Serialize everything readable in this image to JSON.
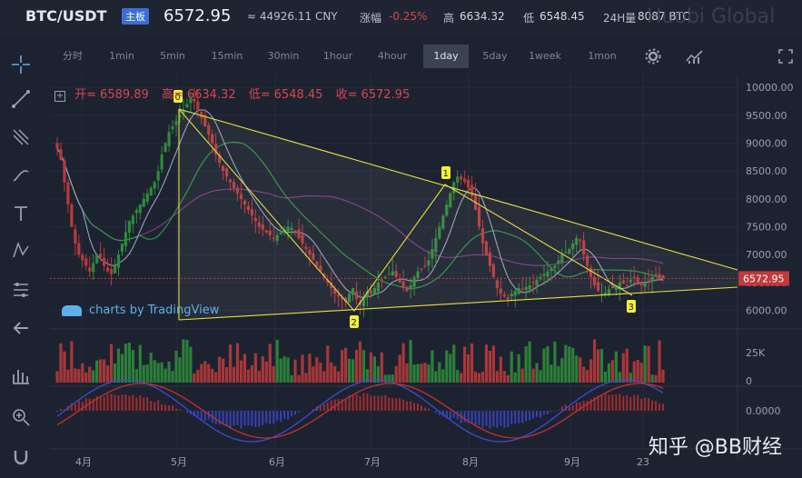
{
  "header": {
    "pair": "BTC/USDT",
    "board_badge": "主板",
    "price": "6572.95",
    "cny_price": "≈ 44926.11 CNY",
    "change_label": "涨幅",
    "change_value": "-0.25%",
    "high_label": "高",
    "high_value": "6634.32",
    "low_label": "低",
    "low_value": "6548.45",
    "volume_label": "24H量",
    "volume_value": "8087 BTC",
    "brand_watermark": "Huobi Global"
  },
  "timeframes": [
    "分时",
    "1min",
    "5min",
    "15min",
    "30min",
    "1hour",
    "4hour",
    "1day",
    "5day",
    "1week",
    "1mon"
  ],
  "active_timeframe": "1day",
  "toolbar_icons": [
    "crosshair-icon",
    "trend-line-icon",
    "fork-icon",
    "brush-icon",
    "text-icon",
    "pattern-icon",
    "fib-icon",
    "back-arrow-icon",
    "ruler-icon",
    "zoom-icon",
    "magnet-icon"
  ],
  "ohlc": {
    "open_label": "开=",
    "open": "6589.89",
    "high_label": "高=",
    "high": "6634.32",
    "low_label": "低=",
    "low": "6548.45",
    "close_label": "收=",
    "close": "6572.95"
  },
  "tradingview_label": "charts by TradingView",
  "watermark": "知乎 @BB财经",
  "colors": {
    "up": "#2e8b3a",
    "down": "#b83a3a",
    "pattern_line": "#e6e03a",
    "price_tag": "#c0393b",
    "ma_purple": "#8a3c8e",
    "ma_green": "#2f9e47",
    "ma_white": "#9aa4c0",
    "macd_blue": "#3a4bd8",
    "macd_red": "#c43030",
    "background": "#1d2230"
  },
  "chart_data": {
    "type": "candlestick",
    "x_tick_labels": [
      "4月",
      "5月",
      "6月",
      "7月",
      "8月",
      "9月",
      "23"
    ],
    "price_axis_labels": [
      "10000.00",
      "9500.00",
      "9000.00",
      "8500.00",
      "8000.00",
      "7500.00",
      "7000.00",
      "6500.00",
      "6000.00"
    ],
    "price_ylim": [
      5700,
      10100
    ],
    "last_price_tag": "6572.95",
    "volume_axis_labels": [
      "25K",
      "0"
    ],
    "macd_axis_labels": [
      "0.0000"
    ],
    "pattern_labels": [
      "0",
      "1",
      "2",
      "3"
    ],
    "close_series": [
      8900,
      8700,
      8300,
      7900,
      7500,
      7200,
      7000,
      6900,
      6800,
      6700,
      6850,
      7000,
      6950,
      6800,
      6700,
      6650,
      6800,
      7000,
      7200,
      7400,
      7600,
      7700,
      7800,
      7900,
      8000,
      8100,
      8200,
      8300,
      8500,
      8800,
      9000,
      9200,
      9300,
      9400,
      9500,
      9600,
      9700,
      9800,
      9750,
      9600,
      9450,
      9300,
      9150,
      9000,
      8800,
      8650,
      8500,
      8400,
      8300,
      8200,
      8100,
      8000,
      7900,
      7800,
      7700,
      7600,
      7500,
      7450,
      7400,
      7350,
      7300,
      7350,
      7400,
      7450,
      7500,
      7480,
      7400,
      7300,
      7200,
      7100,
      7000,
      6900,
      6800,
      6700,
      6600,
      6500,
      6400,
      6300,
      6250,
      6200,
      6150,
      6300,
      6400,
      6200,
      6100,
      6250,
      6350,
      6300,
      6400,
      6500,
      6550,
      6600,
      6650,
      6700,
      6600,
      6500,
      6400,
      6350,
      6450,
      6600,
      6700,
      6750,
      6800,
      6900,
      7100,
      7300,
      7500,
      7700,
      7900,
      8100,
      8300,
      8400,
      8350,
      8300,
      8200,
      8050,
      7800,
      7500,
      7200,
      7000,
      6800,
      6600,
      6400,
      6300,
      6250,
      6200,
      6300,
      6350,
      6400,
      6380,
      6420,
      6450,
      6500,
      6550,
      6600,
      6650,
      6700,
      6750,
      6800,
      6900,
      7000,
      7050,
      7100,
      7200,
      7300,
      7250,
      7000,
      6800,
      6600,
      6450,
      6350,
      6300,
      6320,
      6380,
      6400,
      6420,
      6500,
      6480,
      6450,
      6550,
      6600,
      6500,
      6450,
      6500,
      6550,
      6600,
      6620,
      6580,
      6573
    ],
    "pattern_points": [
      {
        "label": "0",
        "x": "5月",
        "y": 9800
      },
      {
        "label": "1",
        "x": "7月下旬",
        "y": 8300
      },
      {
        "label": "2",
        "x": "6月下旬",
        "y": 5850
      },
      {
        "label": "3",
        "x": "9月下旬",
        "y": 6000
      }
    ],
    "trend_lines": [
      {
        "from": 9650,
        "to": 6650,
        "desc": "upper descending line"
      },
      {
        "from": 5850,
        "to": 6300,
        "desc": "lower ascending line"
      }
    ],
    "grid": true
  }
}
